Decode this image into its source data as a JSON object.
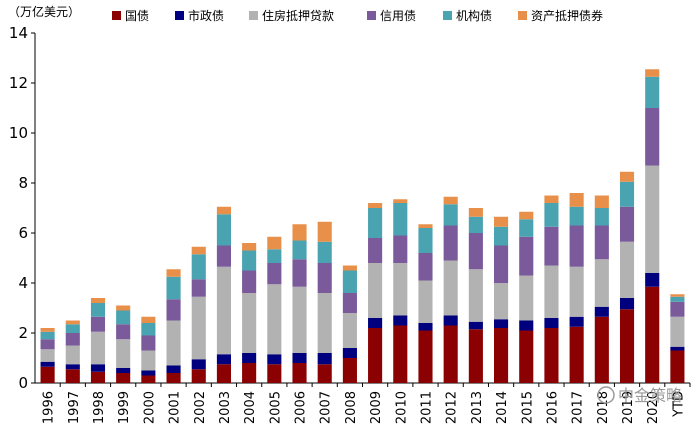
{
  "chart_data": {
    "type": "bar",
    "stacked": true,
    "unit_label": "（万亿美元）",
    "categories": [
      "1996",
      "1997",
      "1998",
      "1999",
      "2000",
      "2001",
      "2002",
      "2003",
      "2004",
      "2005",
      "2006",
      "2007",
      "2008",
      "2009",
      "2010",
      "2011",
      "2012",
      "2013",
      "2014",
      "2015",
      "2016",
      "2017",
      "2018",
      "2019",
      "2020",
      "YTD"
    ],
    "ylim": [
      0,
      14
    ],
    "yticks": [
      0,
      2,
      4,
      6,
      8,
      10,
      12,
      14
    ],
    "legend_position": "top",
    "series": [
      {
        "name": "国债",
        "color": "#8b0000",
        "values": [
          0.65,
          0.55,
          0.45,
          0.4,
          0.3,
          0.4,
          0.55,
          0.75,
          0.8,
          0.75,
          0.8,
          0.75,
          1.0,
          2.2,
          2.3,
          2.1,
          2.3,
          2.15,
          2.2,
          2.1,
          2.2,
          2.25,
          2.65,
          2.95,
          3.85,
          1.3
        ]
      },
      {
        "name": "市政债",
        "color": "#00007f",
        "values": [
          0.2,
          0.2,
          0.3,
          0.2,
          0.2,
          0.3,
          0.4,
          0.4,
          0.4,
          0.4,
          0.4,
          0.45,
          0.4,
          0.4,
          0.4,
          0.3,
          0.4,
          0.3,
          0.35,
          0.4,
          0.4,
          0.4,
          0.4,
          0.45,
          0.55,
          0.15
        ]
      },
      {
        "name": "住房抵押贷款",
        "color": "#b2b2b2",
        "values": [
          0.5,
          0.75,
          1.3,
          1.15,
          0.8,
          1.8,
          2.5,
          3.5,
          2.4,
          2.8,
          2.65,
          2.4,
          1.4,
          2.2,
          2.1,
          1.7,
          2.2,
          2.1,
          1.45,
          1.8,
          2.1,
          2.0,
          1.9,
          2.25,
          4.3,
          1.2
        ]
      },
      {
        "name": "信用债",
        "color": "#7b5a9b",
        "values": [
          0.4,
          0.5,
          0.6,
          0.6,
          0.6,
          0.85,
          0.7,
          0.85,
          0.9,
          0.85,
          1.1,
          1.2,
          0.8,
          1.0,
          1.1,
          1.1,
          1.4,
          1.45,
          1.5,
          1.55,
          1.55,
          1.65,
          1.35,
          1.4,
          2.3,
          0.6
        ]
      },
      {
        "name": "机构债",
        "color": "#4aa3b1",
        "values": [
          0.3,
          0.35,
          0.55,
          0.55,
          0.5,
          0.9,
          1.0,
          1.25,
          0.8,
          0.55,
          0.75,
          0.85,
          0.9,
          1.2,
          1.3,
          1.0,
          0.85,
          0.65,
          0.75,
          0.7,
          0.95,
          0.75,
          0.7,
          1.0,
          1.25,
          0.2
        ]
      },
      {
        "name": "资产抵押债券",
        "color": "#e8904a",
        "values": [
          0.15,
          0.15,
          0.2,
          0.2,
          0.25,
          0.3,
          0.3,
          0.3,
          0.3,
          0.5,
          0.65,
          0.8,
          0.2,
          0.2,
          0.15,
          0.15,
          0.3,
          0.35,
          0.4,
          0.3,
          0.3,
          0.55,
          0.5,
          0.4,
          0.3,
          0.1
        ]
      }
    ]
  },
  "watermark": {
    "text": "中金策略"
  }
}
